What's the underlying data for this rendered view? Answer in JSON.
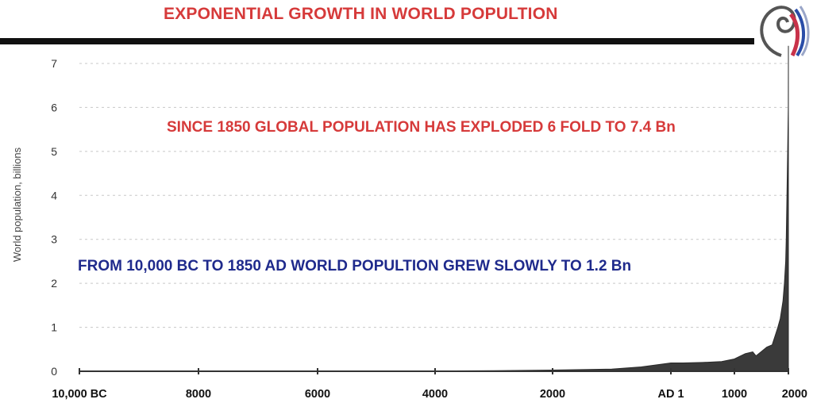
{
  "page": {
    "title": "EXPONENTIAL GROWTH IN WORLD POPULTION",
    "title_color": "#d63a3a",
    "decoration": "swirl-logo"
  },
  "annotations": [
    {
      "text": "SINCE 1850 GLOBAL POPULATION HAS EXPLODED 6 FOLD TO 7.4 Bn",
      "color": "#d63a3a"
    },
    {
      "text": "FROM 10,000 BC TO 1850 AD WORLD POPULTION GREW SLOWLY TO 1.2 Bn",
      "color": "#1f2a8c"
    }
  ],
  "chart_data": {
    "type": "area",
    "title": "EXPONENTIAL GROWTH IN WORLD POPULTION",
    "xlabel": "",
    "ylabel": "World population, billions",
    "xlim": [
      -10000,
      2000
    ],
    "ylim": [
      0,
      7
    ],
    "x_ticks": [
      {
        "value": -10000,
        "label": "10,000 BC"
      },
      {
        "value": -8000,
        "label": "8000"
      },
      {
        "value": -6000,
        "label": "6000"
      },
      {
        "value": -4000,
        "label": "4000"
      },
      {
        "value": -2000,
        "label": "2000"
      },
      {
        "value": 1,
        "label": "AD 1"
      },
      {
        "value": 1000,
        "label": "1000"
      },
      {
        "value": 2000,
        "label": "2000"
      }
    ],
    "y_ticks": [
      0,
      1,
      2,
      3,
      4,
      5,
      6,
      7
    ],
    "grid": "horizontal-dashed",
    "fill_color": "#3a3a3a",
    "series": [
      {
        "x": [
          -10000,
          -8000,
          -6000,
          -5000,
          -4000,
          -3000,
          -2000,
          -1000,
          -500,
          1,
          200,
          500,
          800,
          1000,
          1200,
          1340,
          1400,
          1500,
          1600,
          1700,
          1800,
          1850,
          1900,
          1927,
          1950,
          1960,
          1974,
          1987,
          1999,
          2011,
          2016
        ],
        "values": [
          0.002,
          0.004,
          0.005,
          0.006,
          0.007,
          0.014,
          0.027,
          0.05,
          0.1,
          0.19,
          0.19,
          0.2,
          0.22,
          0.28,
          0.4,
          0.44,
          0.35,
          0.45,
          0.55,
          0.6,
          0.98,
          1.2,
          1.6,
          2.0,
          2.5,
          3.0,
          4.0,
          5.0,
          6.0,
          7.0,
          7.4
        ]
      }
    ]
  }
}
